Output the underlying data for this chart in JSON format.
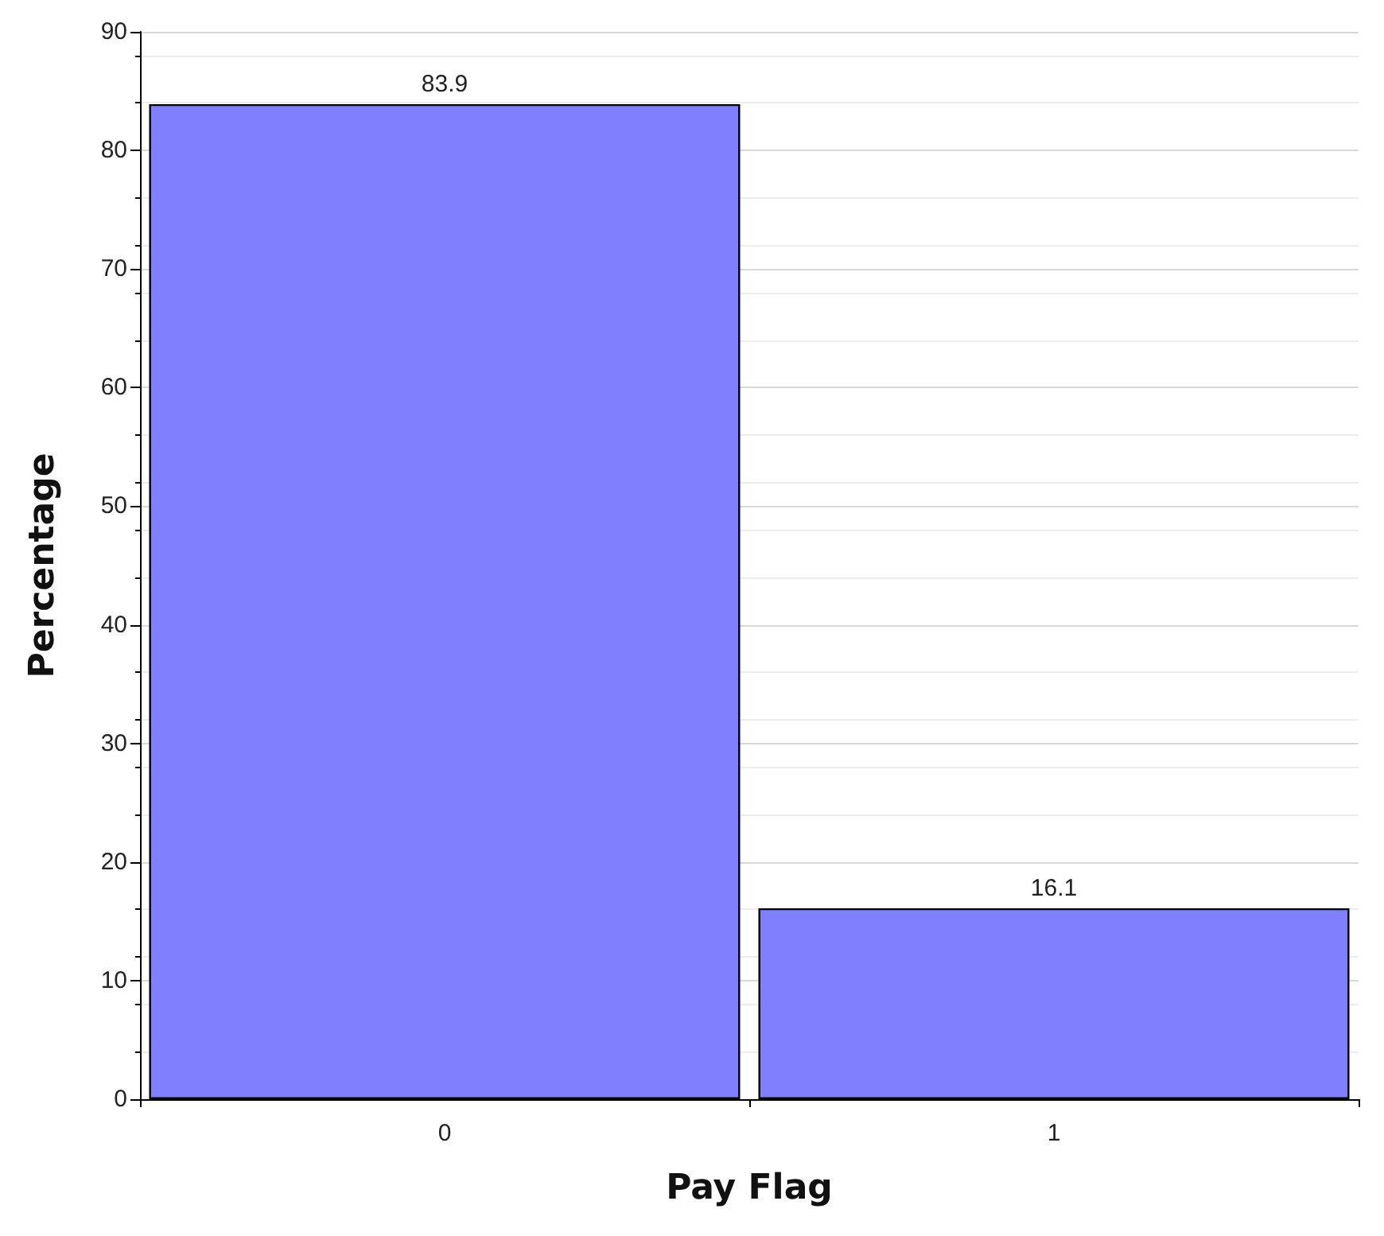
{
  "chart_data": {
    "type": "bar",
    "xlabel": "Pay Flag",
    "ylabel": "Percentage",
    "categories": [
      "0",
      "1"
    ],
    "values": [
      83.9,
      16.1
    ],
    "color": "#8080ff",
    "data_labels": true,
    "ylim": [
      0,
      90
    ],
    "yticks": [
      0,
      10,
      20,
      30,
      40,
      50,
      60,
      70,
      80,
      90
    ],
    "grid": "y"
  }
}
